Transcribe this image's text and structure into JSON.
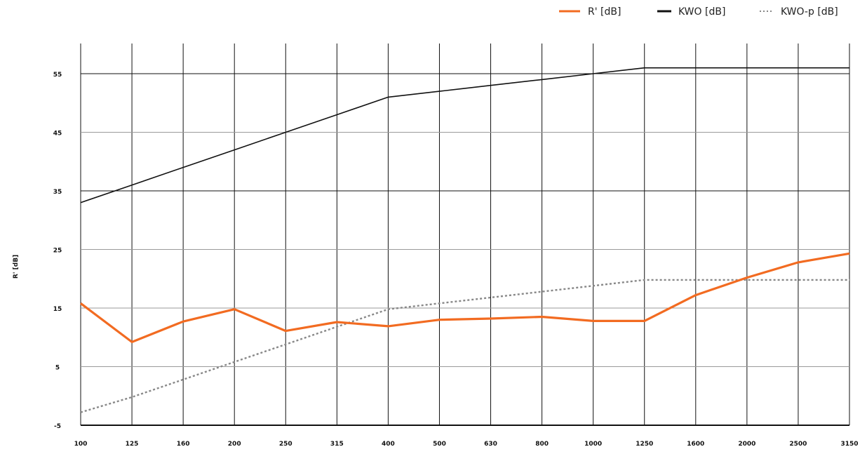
{
  "colors": {
    "r_prime": "#f26b21",
    "kwo": "#111111",
    "kwo_p": "#888888",
    "grid_major": "#111111",
    "grid_minor": "#9a9a9a"
  },
  "legend": [
    {
      "label": "R' [dB]",
      "style": "solid-orange"
    },
    {
      "label": "KWO [dB]",
      "style": "solid-black"
    },
    {
      "label": "KWO-p [dB]",
      "style": "dotted-gray"
    }
  ],
  "chart_data": {
    "type": "line",
    "title": "",
    "xlabel": "",
    "ylabel": "R' [dB]",
    "categories": [
      "100",
      "125",
      "160",
      "200",
      "250",
      "315",
      "400",
      "500",
      "630",
      "800",
      "1000",
      "1250",
      "1600",
      "2000",
      "2500",
      "3150"
    ],
    "yticks": [
      -5,
      5,
      15,
      25,
      35,
      45,
      55
    ],
    "ylim": [
      -5,
      60
    ],
    "grid": true,
    "legend_position": "top-right",
    "series": [
      {
        "name": "R' [dB]",
        "values": [
          15.8,
          9.2,
          12.7,
          14.8,
          11.1,
          12.6,
          11.9,
          13.0,
          13.2,
          13.5,
          12.8,
          12.8,
          17.2,
          20.2,
          22.8,
          24.3
        ]
      },
      {
        "name": "KWO [dB]",
        "values": [
          33,
          36,
          39,
          42,
          45,
          48,
          51,
          52,
          53,
          54,
          55,
          56,
          56,
          56,
          56,
          56
        ]
      },
      {
        "name": "KWO-p [dB]",
        "values": [
          -2.8,
          -0.2,
          2.8,
          5.8,
          8.8,
          11.8,
          14.8,
          15.8,
          16.8,
          17.8,
          18.8,
          19.8,
          19.8,
          19.8,
          19.8,
          19.8
        ]
      }
    ]
  }
}
